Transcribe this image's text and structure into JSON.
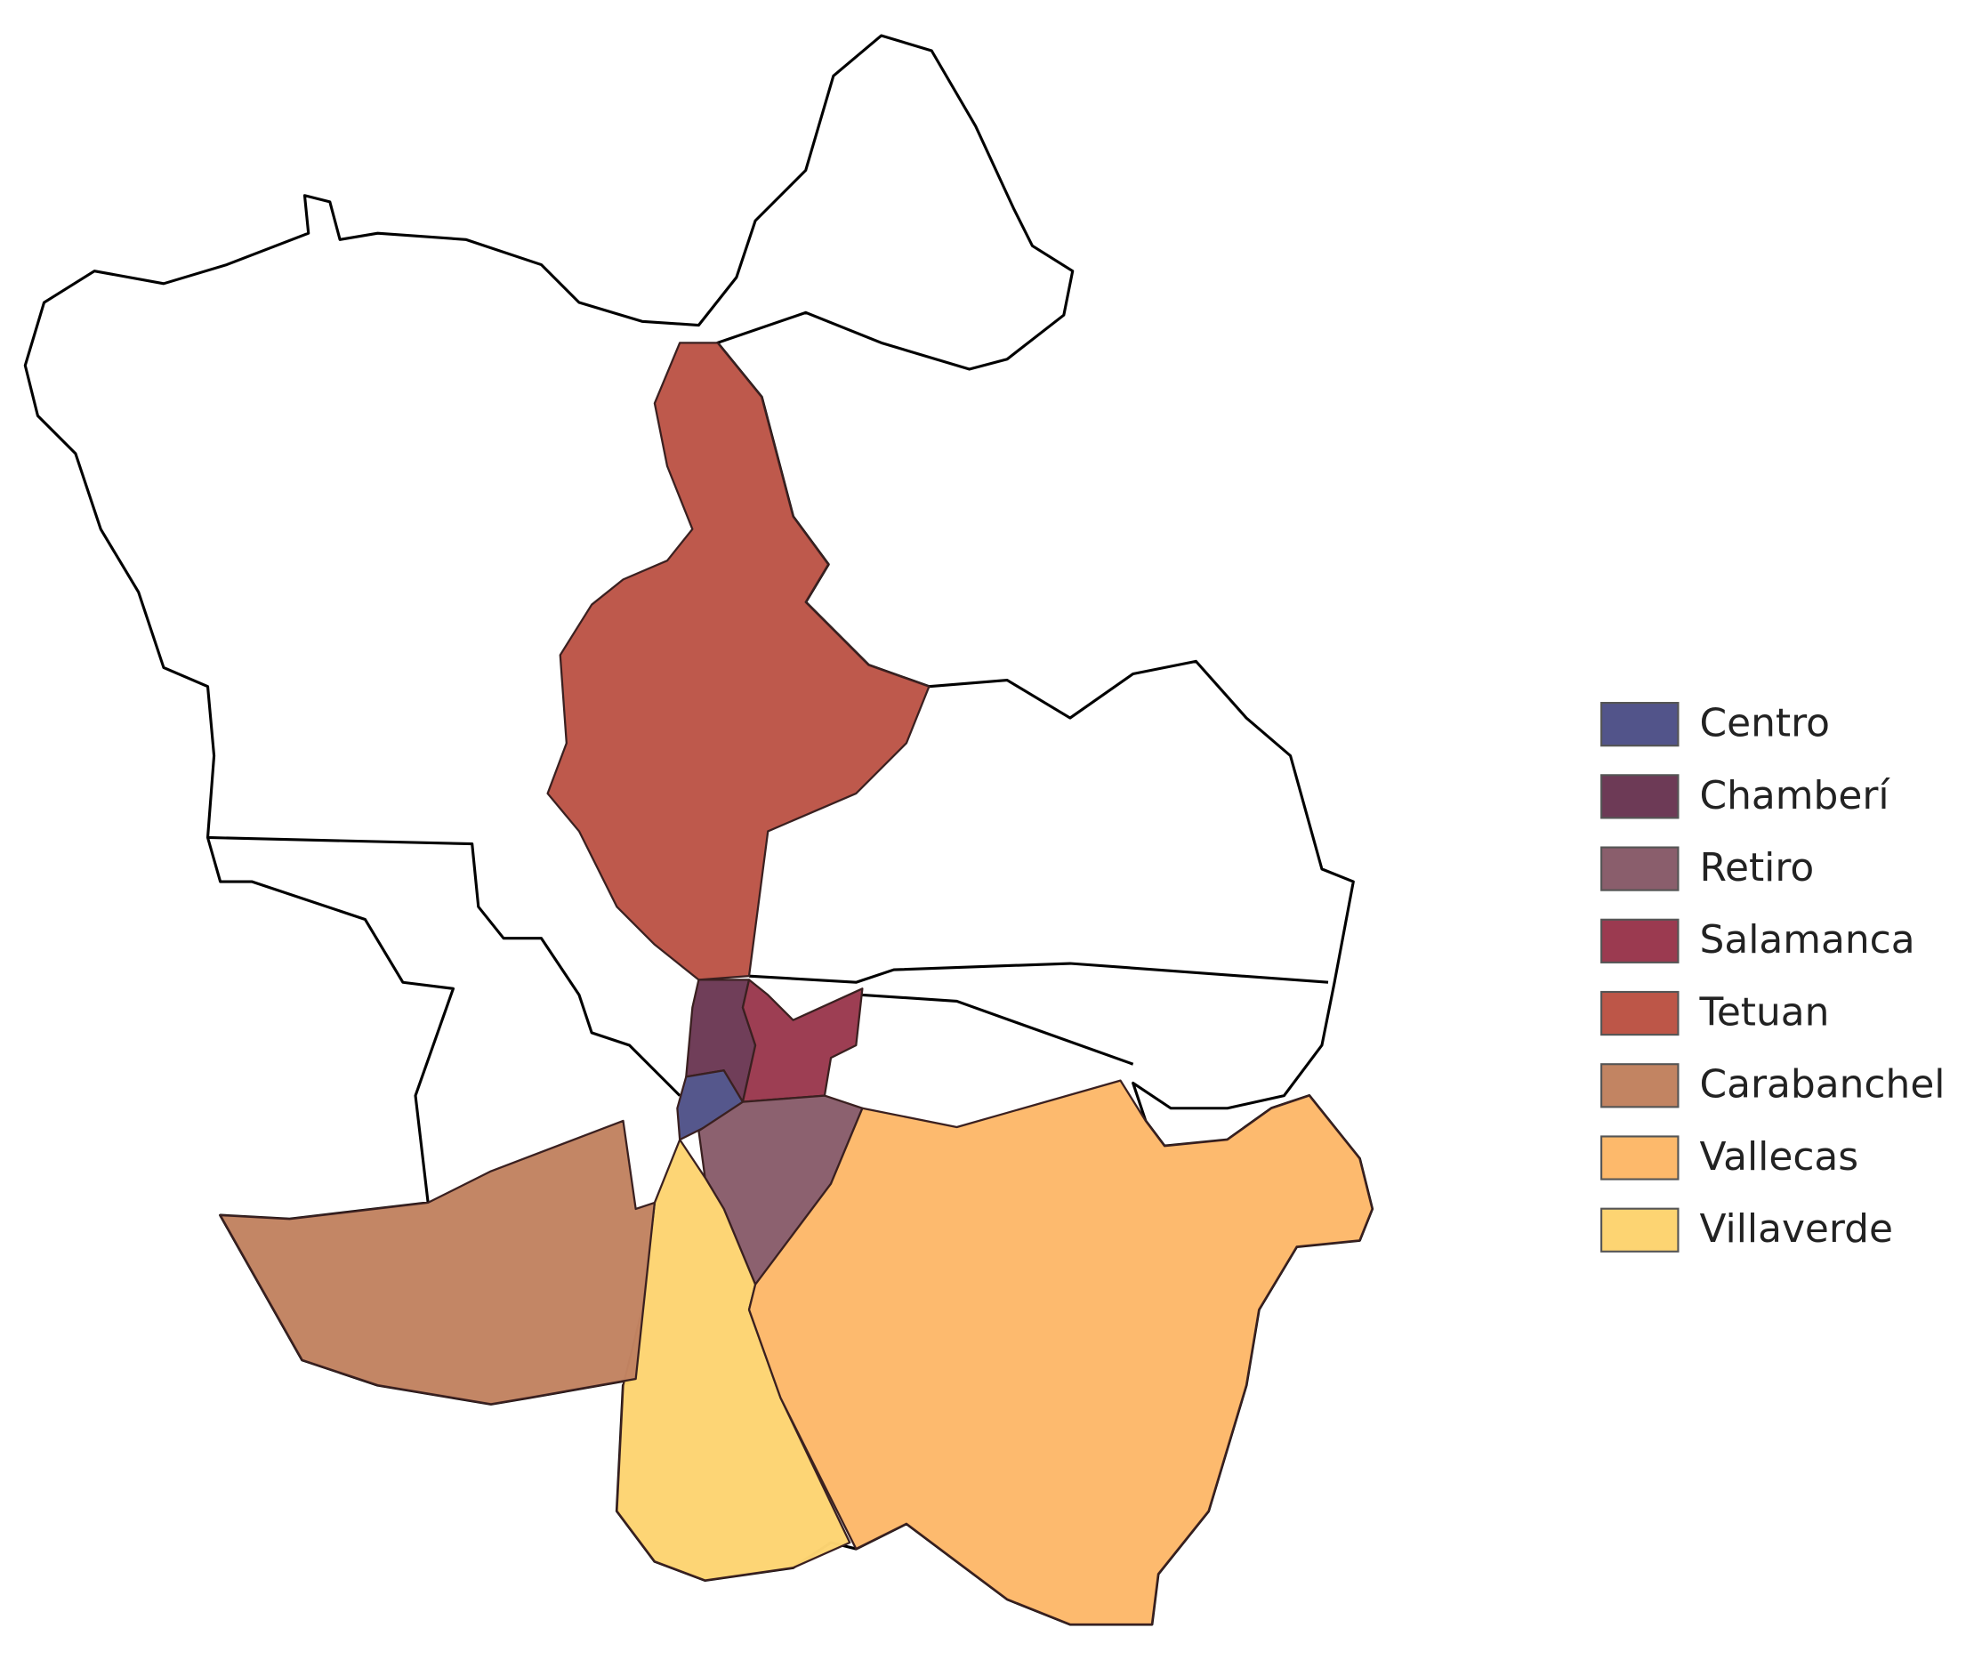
{
  "legend": {
    "items": [
      {
        "name": "Centro",
        "color": "#52548a"
      },
      {
        "name": "Chamberí",
        "color": "#6d3a56"
      },
      {
        "name": "Retiro",
        "color": "#8a5e6c"
      },
      {
        "name": "Salamanca",
        "color": "#9b3a50"
      },
      {
        "name": "Tetuan",
        "color": "#bd5648"
      },
      {
        "name": "Carabanchel",
        "color": "#c28462"
      },
      {
        "name": "Vallecas",
        "color": "#fdb96b"
      },
      {
        "name": "Villaverde",
        "color": "#fdd472"
      }
    ]
  }
}
